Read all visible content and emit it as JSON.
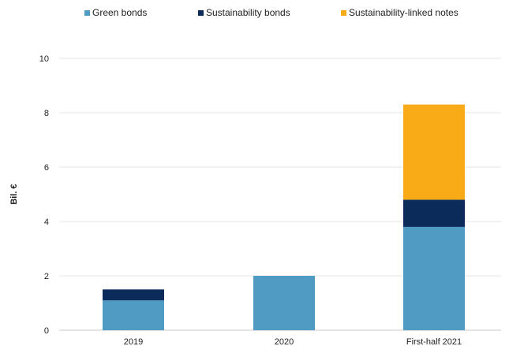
{
  "chart_data": {
    "type": "bar",
    "stacked": true,
    "categories": [
      "2019",
      "2020",
      "First-half 2021"
    ],
    "series": [
      {
        "name": "Green bonds",
        "color": "#4f9bc4",
        "values": [
          1.1,
          2.0,
          3.8
        ]
      },
      {
        "name": "Sustainability bonds",
        "color": "#0b2c5a",
        "values": [
          0.4,
          0.0,
          1.0
        ]
      },
      {
        "name": "Sustainability-linked notes",
        "color": "#f9aa17",
        "values": [
          0.0,
          0.0,
          3.5
        ]
      }
    ],
    "ylabel": "Bil. €",
    "ylim": [
      0,
      10
    ],
    "yticks": [
      0,
      2,
      4,
      6,
      8,
      10
    ],
    "grid": true,
    "legend_position": "top"
  }
}
